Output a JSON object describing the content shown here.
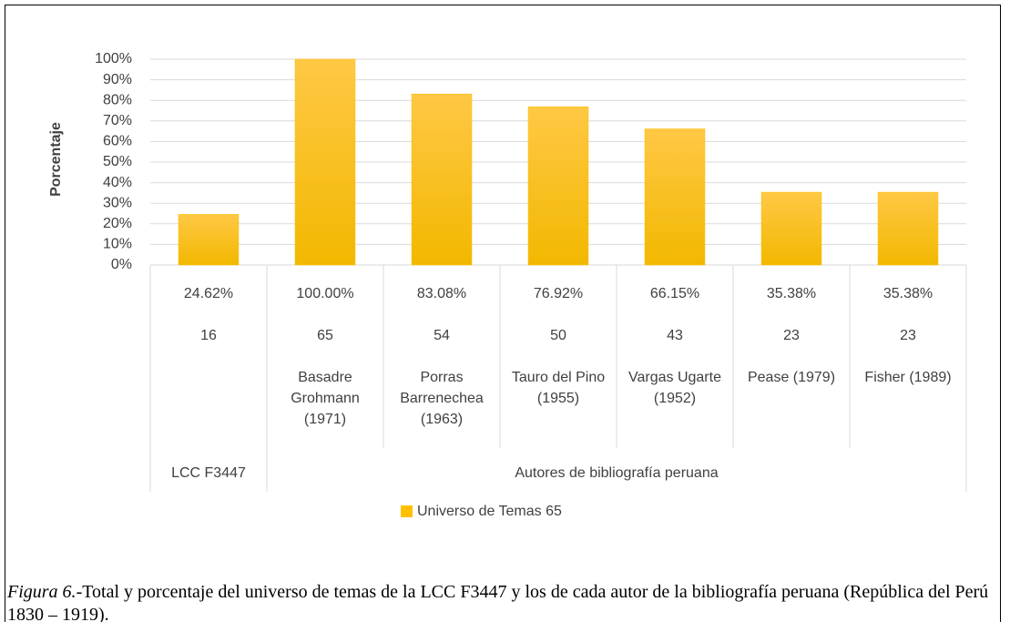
{
  "chart_data": {
    "type": "bar",
    "y_label": "Porcentaje",
    "categories": [
      null,
      "Basadre Grohmann (1971)",
      "Porras Barrenechea (1963)",
      "Tauro del Pino (1955)",
      "Vargas Ugarte (1952)",
      "Pease (1979)",
      "Fisher (1989)"
    ],
    "groups": [
      {
        "name": "LCC F3447",
        "size": 1
      },
      {
        "name": "Autores de bibliografía peruana",
        "size": 6
      }
    ],
    "series": [
      {
        "name": "Universo de Temas 65",
        "color": "#ffc000",
        "values": [
          24.62,
          100,
          83.08,
          76.92,
          66.15,
          35.38,
          35.38
        ],
        "value_labels": [
          "24.62%",
          "100.00%",
          "83.08%",
          "76.92%",
          "66.15%",
          "35.38%",
          "35.38%"
        ],
        "counts": [
          16,
          65,
          54,
          50,
          43,
          23,
          23
        ]
      }
    ],
    "ylim": [
      0,
      100
    ],
    "yticks": [
      {
        "value": 0,
        "label": "0%"
      },
      {
        "value": 10,
        "label": "10%"
      },
      {
        "value": 20,
        "label": "20%"
      },
      {
        "value": 30,
        "label": "30%"
      },
      {
        "value": 40,
        "label": "40%"
      },
      {
        "value": 50,
        "label": "50%"
      },
      {
        "value": 60,
        "label": "60%"
      },
      {
        "value": 70,
        "label": "70%"
      },
      {
        "value": 80,
        "label": "80%"
      },
      {
        "value": 90,
        "label": "90%"
      },
      {
        "value": 100,
        "label": "100%"
      }
    ],
    "grid": true,
    "legend": "bottom"
  },
  "caption": {
    "label": "Figura 6.",
    "text": "-Total y porcentaje del universo de temas de la LCC F3447 y los de cada autor de la bibliografía peruana (República del Perú 1830 – 1919)."
  }
}
